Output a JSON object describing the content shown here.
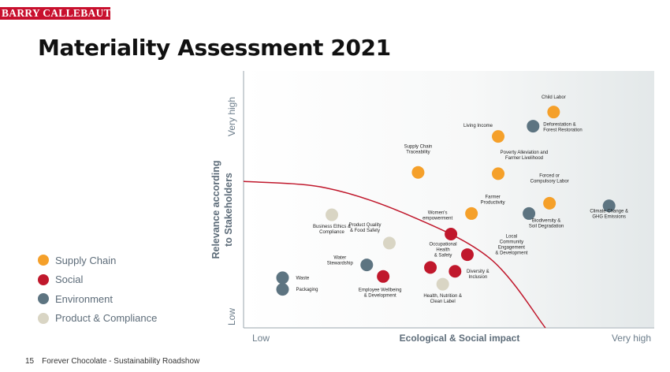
{
  "header": {
    "logo_text": "BARRY CALLEBAUT",
    "title": "Materiality Assessment 2021"
  },
  "legend": [
    {
      "label": "Supply Chain",
      "color": "#f5a02a"
    },
    {
      "label": "Social",
      "color": "#c0182c"
    },
    {
      "label": "Environment",
      "color": "#5d7481"
    },
    {
      "label": "Product & Compliance",
      "color": "#d9d5c4"
    }
  ],
  "footer": {
    "page_number": "15",
    "text": "Forever Chocolate - Sustainability Roadshow"
  },
  "chart_data": {
    "type": "scatter",
    "title": "",
    "xlabel": "Ecological & Social impact",
    "ylabel_lines": [
      "Relevance according",
      "to Stakeholders"
    ],
    "x_tick_labels": {
      "low": "Low",
      "high": "Very high"
    },
    "y_tick_labels": {
      "low": "Low",
      "high": "Very high"
    },
    "xlim": [
      0,
      1
    ],
    "ylim": [
      0,
      1
    ],
    "categories": [
      "Supply Chain",
      "Social",
      "Environment",
      "Product & Compliance"
    ],
    "materiality_threshold_curve": [
      [
        0,
        0.57
      ],
      [
        0.2,
        0.545
      ],
      [
        0.4,
        0.44
      ],
      [
        0.6,
        0.27
      ],
      [
        0.735,
        0.0
      ]
    ],
    "points": [
      {
        "lines": [
          "Child Labor"
        ],
        "category": "Supply Chain",
        "x": 0.755,
        "y": 0.84
      },
      {
        "lines": [
          "Deforestation &",
          "Forest Restoration"
        ],
        "category": "Environment",
        "x": 0.705,
        "y": 0.785
      },
      {
        "lines": [
          "Living Income"
        ],
        "category": "Supply Chain",
        "x": 0.62,
        "y": 0.745
      },
      {
        "lines": [
          "Supply Chain",
          "Traceability"
        ],
        "category": "Supply Chain",
        "x": 0.425,
        "y": 0.605
      },
      {
        "lines": [
          "Poverty Alleviation and",
          "Farmer Livelihood"
        ],
        "category": "Supply Chain",
        "x": 0.62,
        "y": 0.6
      },
      {
        "lines": [
          "Forced or",
          "Compulsory Labor"
        ],
        "category": "Supply Chain",
        "x": 0.745,
        "y": 0.485
      },
      {
        "lines": [
          "Farmer",
          "Productivity"
        ],
        "category": "Supply Chain",
        "x": 0.555,
        "y": 0.445
      },
      {
        "lines": [
          "Biodiversity &",
          "Soil Degradation"
        ],
        "category": "Environment",
        "x": 0.695,
        "y": 0.445
      },
      {
        "lines": [
          "Climate Change &",
          "GHG Emissions"
        ],
        "category": "Environment",
        "x": 0.89,
        "y": 0.475
      },
      {
        "lines": [
          "Business Ethics &",
          "Compliance"
        ],
        "category": "Product & Compliance",
        "x": 0.215,
        "y": 0.44
      },
      {
        "lines": [
          "Women's",
          "empowerment"
        ],
        "category": "Social",
        "x": 0.505,
        "y": 0.365
      },
      {
        "lines": [
          "Product Quality",
          "& Food Safety"
        ],
        "category": "Product & Compliance",
        "x": 0.355,
        "y": 0.33
      },
      {
        "lines": [
          "Local",
          "Community",
          "Engagement",
          "& Development"
        ],
        "category": "Social",
        "x": 0.545,
        "y": 0.285
      },
      {
        "lines": [
          "Occupational",
          "Health",
          "& Safety"
        ],
        "category": "Social",
        "x": 0.455,
        "y": 0.235
      },
      {
        "lines": [
          "Water",
          "Stewardship"
        ],
        "category": "Environment",
        "x": 0.3,
        "y": 0.245
      },
      {
        "lines": [
          "Diversity &",
          "Inclusion"
        ],
        "category": "Social",
        "x": 0.515,
        "y": 0.22
      },
      {
        "lines": [
          "Employee Wellbeing",
          "& Development"
        ],
        "category": "Social",
        "x": 0.34,
        "y": 0.2
      },
      {
        "lines": [
          "Health, Nutrition &",
          "Clean Label"
        ],
        "category": "Product & Compliance",
        "x": 0.485,
        "y": 0.17
      },
      {
        "lines": [
          "Waste"
        ],
        "category": "Environment",
        "x": 0.095,
        "y": 0.195
      },
      {
        "lines": [
          "Packaging"
        ],
        "category": "Environment",
        "x": 0.095,
        "y": 0.15
      }
    ]
  }
}
